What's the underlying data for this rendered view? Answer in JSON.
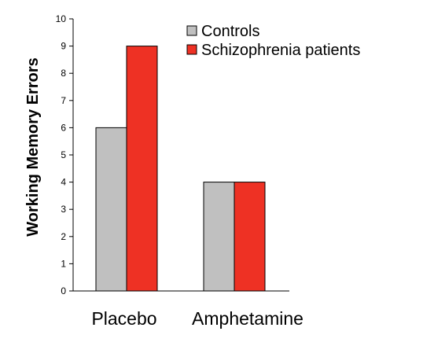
{
  "chart_data": {
    "type": "bar",
    "categories": [
      "Placebo",
      "Amphetamine"
    ],
    "series": [
      {
        "name": "Controls",
        "values": [
          6,
          4
        ],
        "color": "#c0c0c0"
      },
      {
        "name": "Schizophrenia patients",
        "values": [
          9,
          4
        ],
        "color": "#ee3124"
      }
    ],
    "ylabel": "Working Memory Errors",
    "xlabel": "",
    "ylim": [
      0,
      10
    ],
    "yticks": [
      0,
      1,
      2,
      3,
      4,
      5,
      6,
      7,
      8,
      9,
      10
    ],
    "grid": false,
    "legend_position": "top-right"
  }
}
